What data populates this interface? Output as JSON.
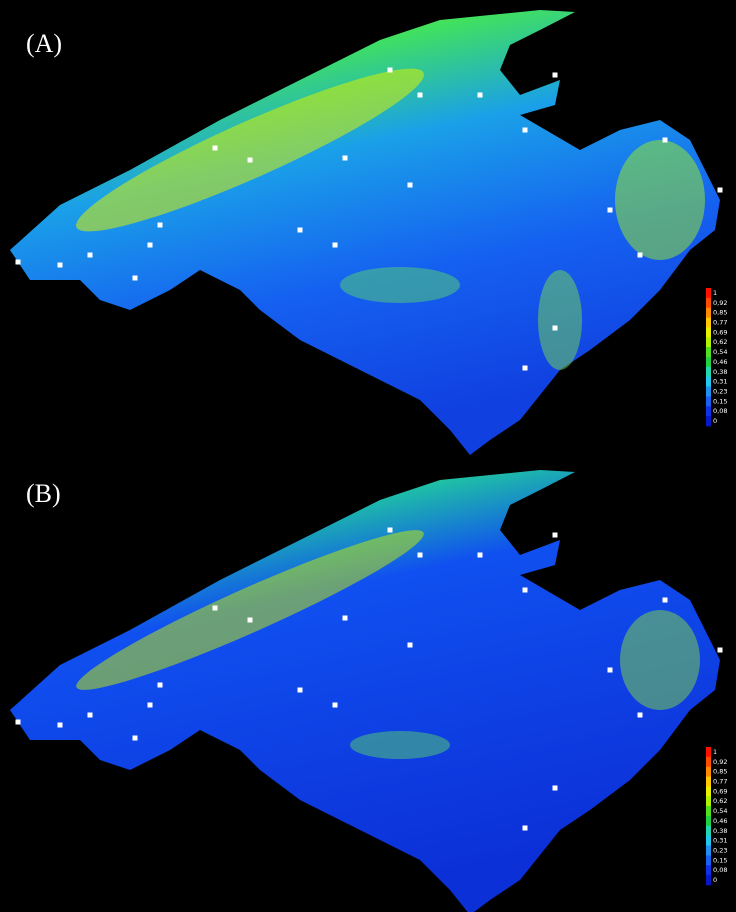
{
  "panels": [
    {
      "label": "(A)",
      "legend": {
        "labels": [
          "1",
          "0,92",
          "0,85",
          "0,77",
          "0,69",
          "0,62",
          "0,54",
          "0,46",
          "0,38",
          "0,31",
          "0,23",
          "0,15",
          "0,08",
          "0"
        ]
      }
    },
    {
      "label": "(B)",
      "legend": {
        "labels": [
          "1",
          "0,92",
          "0,85",
          "0,77",
          "0,69",
          "0,62",
          "0,54",
          "0,46",
          "0,38",
          "0,31",
          "0,23",
          "0,15",
          "0,08",
          "0"
        ]
      }
    }
  ]
}
